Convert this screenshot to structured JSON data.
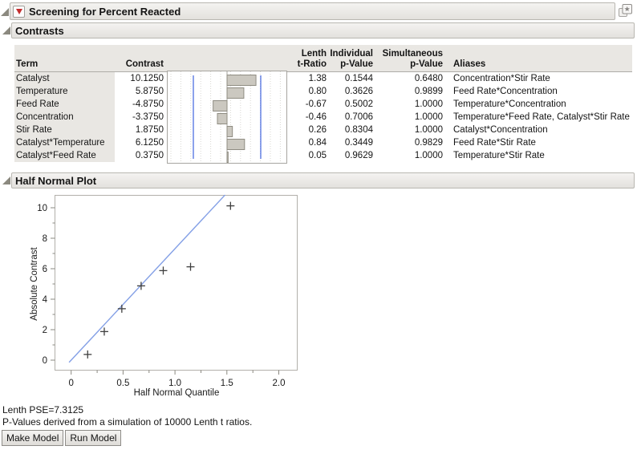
{
  "window": {
    "title": "Screening for Percent Reacted"
  },
  "sections": {
    "contrasts": "Contrasts",
    "half_normal": "Half Normal Plot"
  },
  "contrasts": {
    "headers": {
      "term": "Term",
      "contrast": "Contrast",
      "lenth": [
        "Lenth",
        "t-Ratio"
      ],
      "individual": [
        "Individual",
        "p-Value"
      ],
      "simultaneous": [
        "Simultaneous",
        "p-Value"
      ],
      "aliases": "Aliases"
    },
    "rows": [
      {
        "term": "Catalyst",
        "contrast": "10.1250",
        "t_ratio": "1.38",
        "p_individual": "0.1544",
        "p_simultaneous": "0.6480",
        "aliases": "Concentration*Stir Rate"
      },
      {
        "term": "Temperature",
        "contrast": "5.8750",
        "t_ratio": "0.80",
        "p_individual": "0.3626",
        "p_simultaneous": "0.9899",
        "aliases": "Feed Rate*Concentration"
      },
      {
        "term": "Feed Rate",
        "contrast": "-4.8750",
        "t_ratio": "-0.67",
        "p_individual": "0.5002",
        "p_simultaneous": "1.0000",
        "aliases": "Temperature*Concentration"
      },
      {
        "term": "Concentration",
        "contrast": "-3.3750",
        "t_ratio": "-0.46",
        "p_individual": "0.7006",
        "p_simultaneous": "1.0000",
        "aliases": "Temperature*Feed Rate, Catalyst*Stir Rate"
      },
      {
        "term": "Stir Rate",
        "contrast": "1.8750",
        "t_ratio": "0.26",
        "p_individual": "0.8304",
        "p_simultaneous": "1.0000",
        "aliases": "Catalyst*Concentration"
      },
      {
        "term": "Catalyst*Temperature",
        "contrast": "6.1250",
        "t_ratio": "0.84",
        "p_individual": "0.3449",
        "p_simultaneous": "0.9829",
        "aliases": "Feed Rate*Stir Rate"
      },
      {
        "term": "Catalyst*Feed Rate",
        "contrast": "0.3750",
        "t_ratio": "0.05",
        "p_individual": "0.9629",
        "p_simultaneous": "1.0000",
        "aliases": "Temperature*Stir Rate"
      }
    ]
  },
  "half_normal": {
    "ylabel": "Absolute Contrast",
    "xlabel": "Half Normal Quantile",
    "y_tick_labels": [
      "0",
      "2",
      "4",
      "6",
      "8",
      "10"
    ],
    "x_tick_labels": [
      "0",
      "0.5",
      "1.0",
      "1.5",
      "2.0"
    ]
  },
  "footer": {
    "lenth_pse": "Lenth PSE=7.3125",
    "pvalue_note": "P-Values derived from a simulation of 10000 Lenth t ratios.",
    "make_model": "Make Model",
    "run_model": "Run Model"
  },
  "colors": {
    "fit_line_blue": "#84a0e6",
    "reference_line_blue": "#3e63de",
    "bar_fill": "#cbc8c0",
    "bar_border": "#8f8c82",
    "header_band_bg": "#e9e7e3",
    "red_triangle": "#c42e2e"
  },
  "chart_data": [
    {
      "type": "bar",
      "orientation": "horizontal",
      "title": "Contrast bar column",
      "categories": [
        "Catalyst",
        "Temperature",
        "Feed Rate",
        "Concentration",
        "Stir Rate",
        "Catalyst*Temperature",
        "Catalyst*Feed Rate"
      ],
      "values": [
        10.125,
        5.875,
        -4.875,
        -3.375,
        1.875,
        6.125,
        0.375
      ],
      "reference_lines": [
        -11.8,
        11.8
      ],
      "xlim": [
        -21,
        21
      ],
      "grid": "dotted-vertical"
    },
    {
      "type": "scatter",
      "title": "Half Normal Plot",
      "xlabel": "Half Normal Quantile",
      "ylabel": "Absolute Contrast",
      "xlim": [
        -0.15,
        2.18
      ],
      "ylim": [
        -0.7,
        10.85
      ],
      "x_ticks": [
        0,
        0.5,
        1.0,
        1.5,
        2.0
      ],
      "y_ticks": [
        0,
        2,
        4,
        6,
        8,
        10
      ],
      "marker": "plus",
      "points": [
        {
          "term": "Catalyst*Feed Rate",
          "x": 0.159,
          "y": 0.375
        },
        {
          "term": "Stir Rate",
          "x": 0.319,
          "y": 1.875
        },
        {
          "term": "Concentration",
          "x": 0.488,
          "y": 3.375
        },
        {
          "term": "Feed Rate",
          "x": 0.674,
          "y": 4.875
        },
        {
          "term": "Temperature",
          "x": 0.887,
          "y": 5.875
        },
        {
          "term": "Catalyst*Temperature",
          "x": 1.15,
          "y": 6.125
        },
        {
          "term": "Catalyst",
          "x": 1.535,
          "y": 10.125
        }
      ],
      "fit_line": {
        "slope": 7.3125,
        "intercept": 0
      }
    }
  ]
}
